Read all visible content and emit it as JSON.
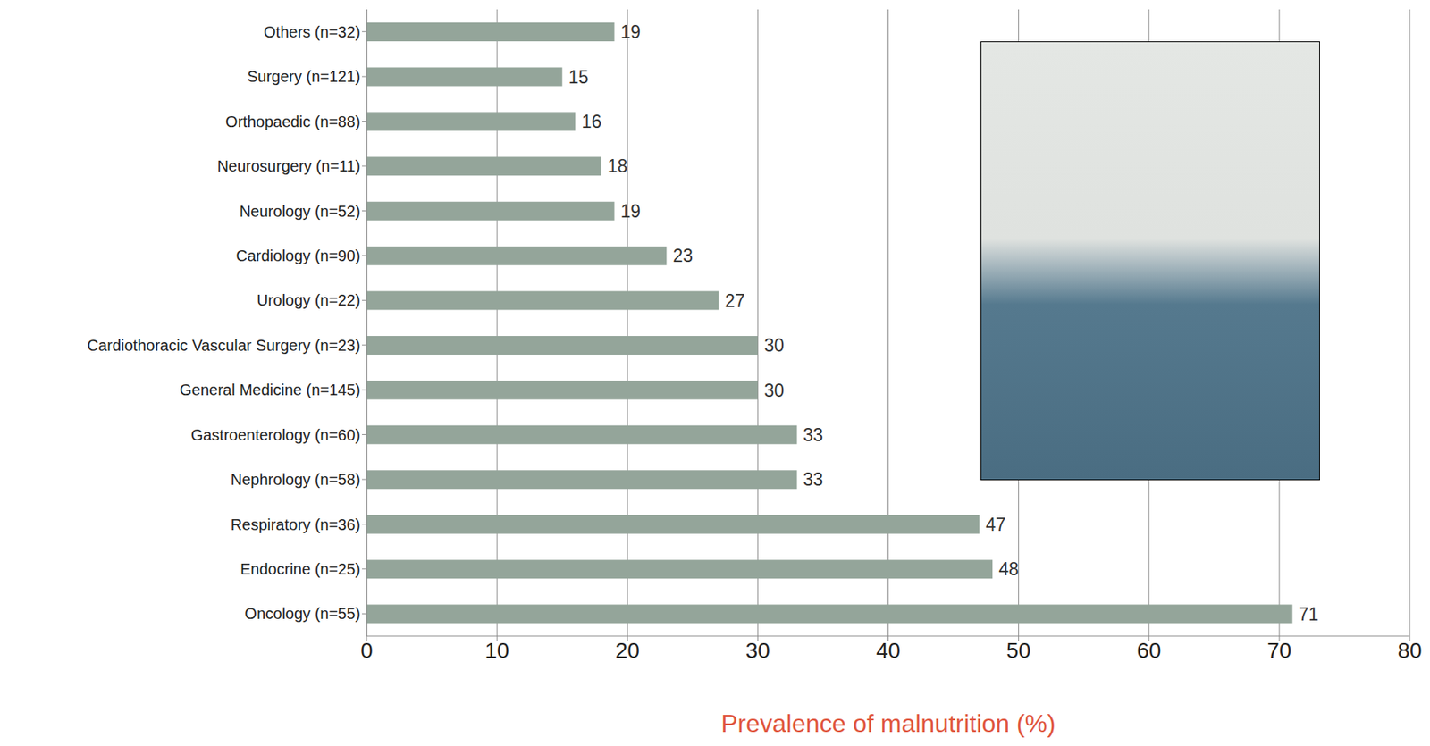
{
  "chart_data": {
    "type": "bar",
    "orientation": "horizontal",
    "x_label": "Prevalence of malnutrition (%)",
    "categories": [
      "Others (n=32)",
      "Surgery (n=121)",
      "Orthopaedic (n=88)",
      "Neurosurgery (n=11)",
      "Neurology (n=52)",
      "Cardiology (n=90)",
      "Urology (n=22)",
      "Cardiothoracic Vascular Surgery (n=23)",
      "General Medicine (n=145)",
      "Gastroenterology (n=60)",
      "Nephrology (n=58)",
      "Respiratory (n=36)",
      "Endocrine (n=25)",
      "Oncology (n=55)"
    ],
    "values": [
      19,
      15,
      16,
      18,
      19,
      23,
      27,
      30,
      30,
      33,
      33,
      47,
      48,
      71
    ],
    "color": "#94a59a",
    "xlim": [
      0,
      80
    ],
    "xticks": [
      0,
      10,
      20,
      30,
      40,
      50,
      60,
      70,
      80
    ],
    "grid": true,
    "data_labels": true
  }
}
